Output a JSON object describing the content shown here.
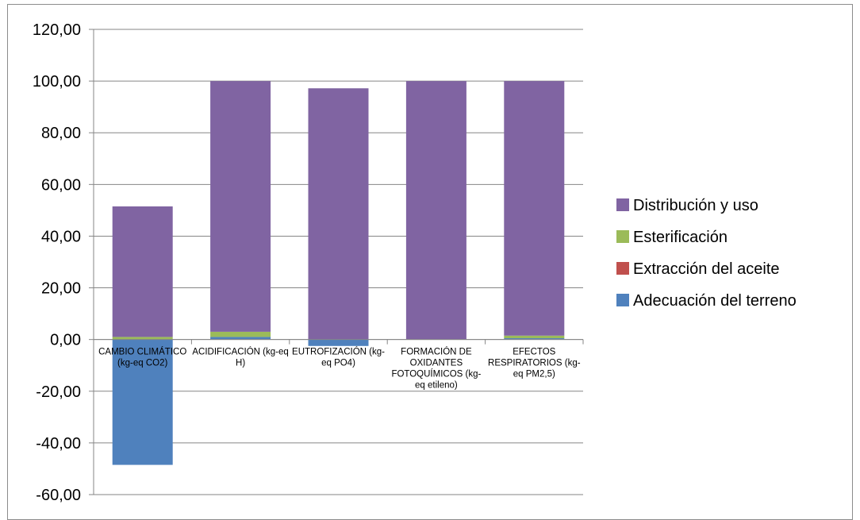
{
  "chart_data": {
    "type": "bar",
    "stacked": true,
    "categories": [
      [
        "CAMBIO CLIMÁTICO",
        "(kg-eq CO2)"
      ],
      [
        "ACIDIFICACIÓN (kg-eq",
        "H)"
      ],
      [
        "EUTROFIZACIÓN (kg-",
        "eq PO4)"
      ],
      [
        "FORMACIÓN DE",
        "OXIDANTES",
        "FOTOQUÍMICOS (kg-",
        "eq etileno)"
      ],
      [
        "EFECTOS",
        "RESPIRATORIOS (kg-",
        "eq PM2,5)"
      ]
    ],
    "series": [
      {
        "name": "Adecuación del  terreno",
        "color": "#4F81BD",
        "values": [
          -48.5,
          1.0,
          -2.5,
          0.0,
          0.5
        ]
      },
      {
        "name": "Extracción del aceite",
        "color": "#C0504D",
        "values": [
          0.0,
          0.0,
          0.0,
          0.0,
          0.0
        ]
      },
      {
        "name": "Esterificación",
        "color": "#9BBB59",
        "values": [
          1.0,
          2.0,
          0.0,
          0.0,
          1.0
        ]
      },
      {
        "name": "Distribución y uso",
        "color": "#8064A2",
        "values": [
          50.5,
          97.0,
          97.2,
          100.0,
          98.5
        ]
      }
    ],
    "legend_order": [
      "Distribución y uso",
      "Esterificación",
      "Extracción del aceite",
      "Adecuación del  terreno"
    ],
    "ylim": [
      -60,
      120
    ],
    "yticks": [
      120,
      100,
      80,
      60,
      40,
      20,
      0,
      -20,
      -40,
      -60
    ],
    "ytick_labels": [
      "120,00",
      "100,00",
      "80,00",
      "60,00",
      "40,00",
      "20,00",
      "0,00",
      "-20,00",
      "-40,00",
      "-60,00"
    ],
    "grid": true,
    "legend_position": "right",
    "title": "",
    "xlabel": "",
    "ylabel": ""
  }
}
